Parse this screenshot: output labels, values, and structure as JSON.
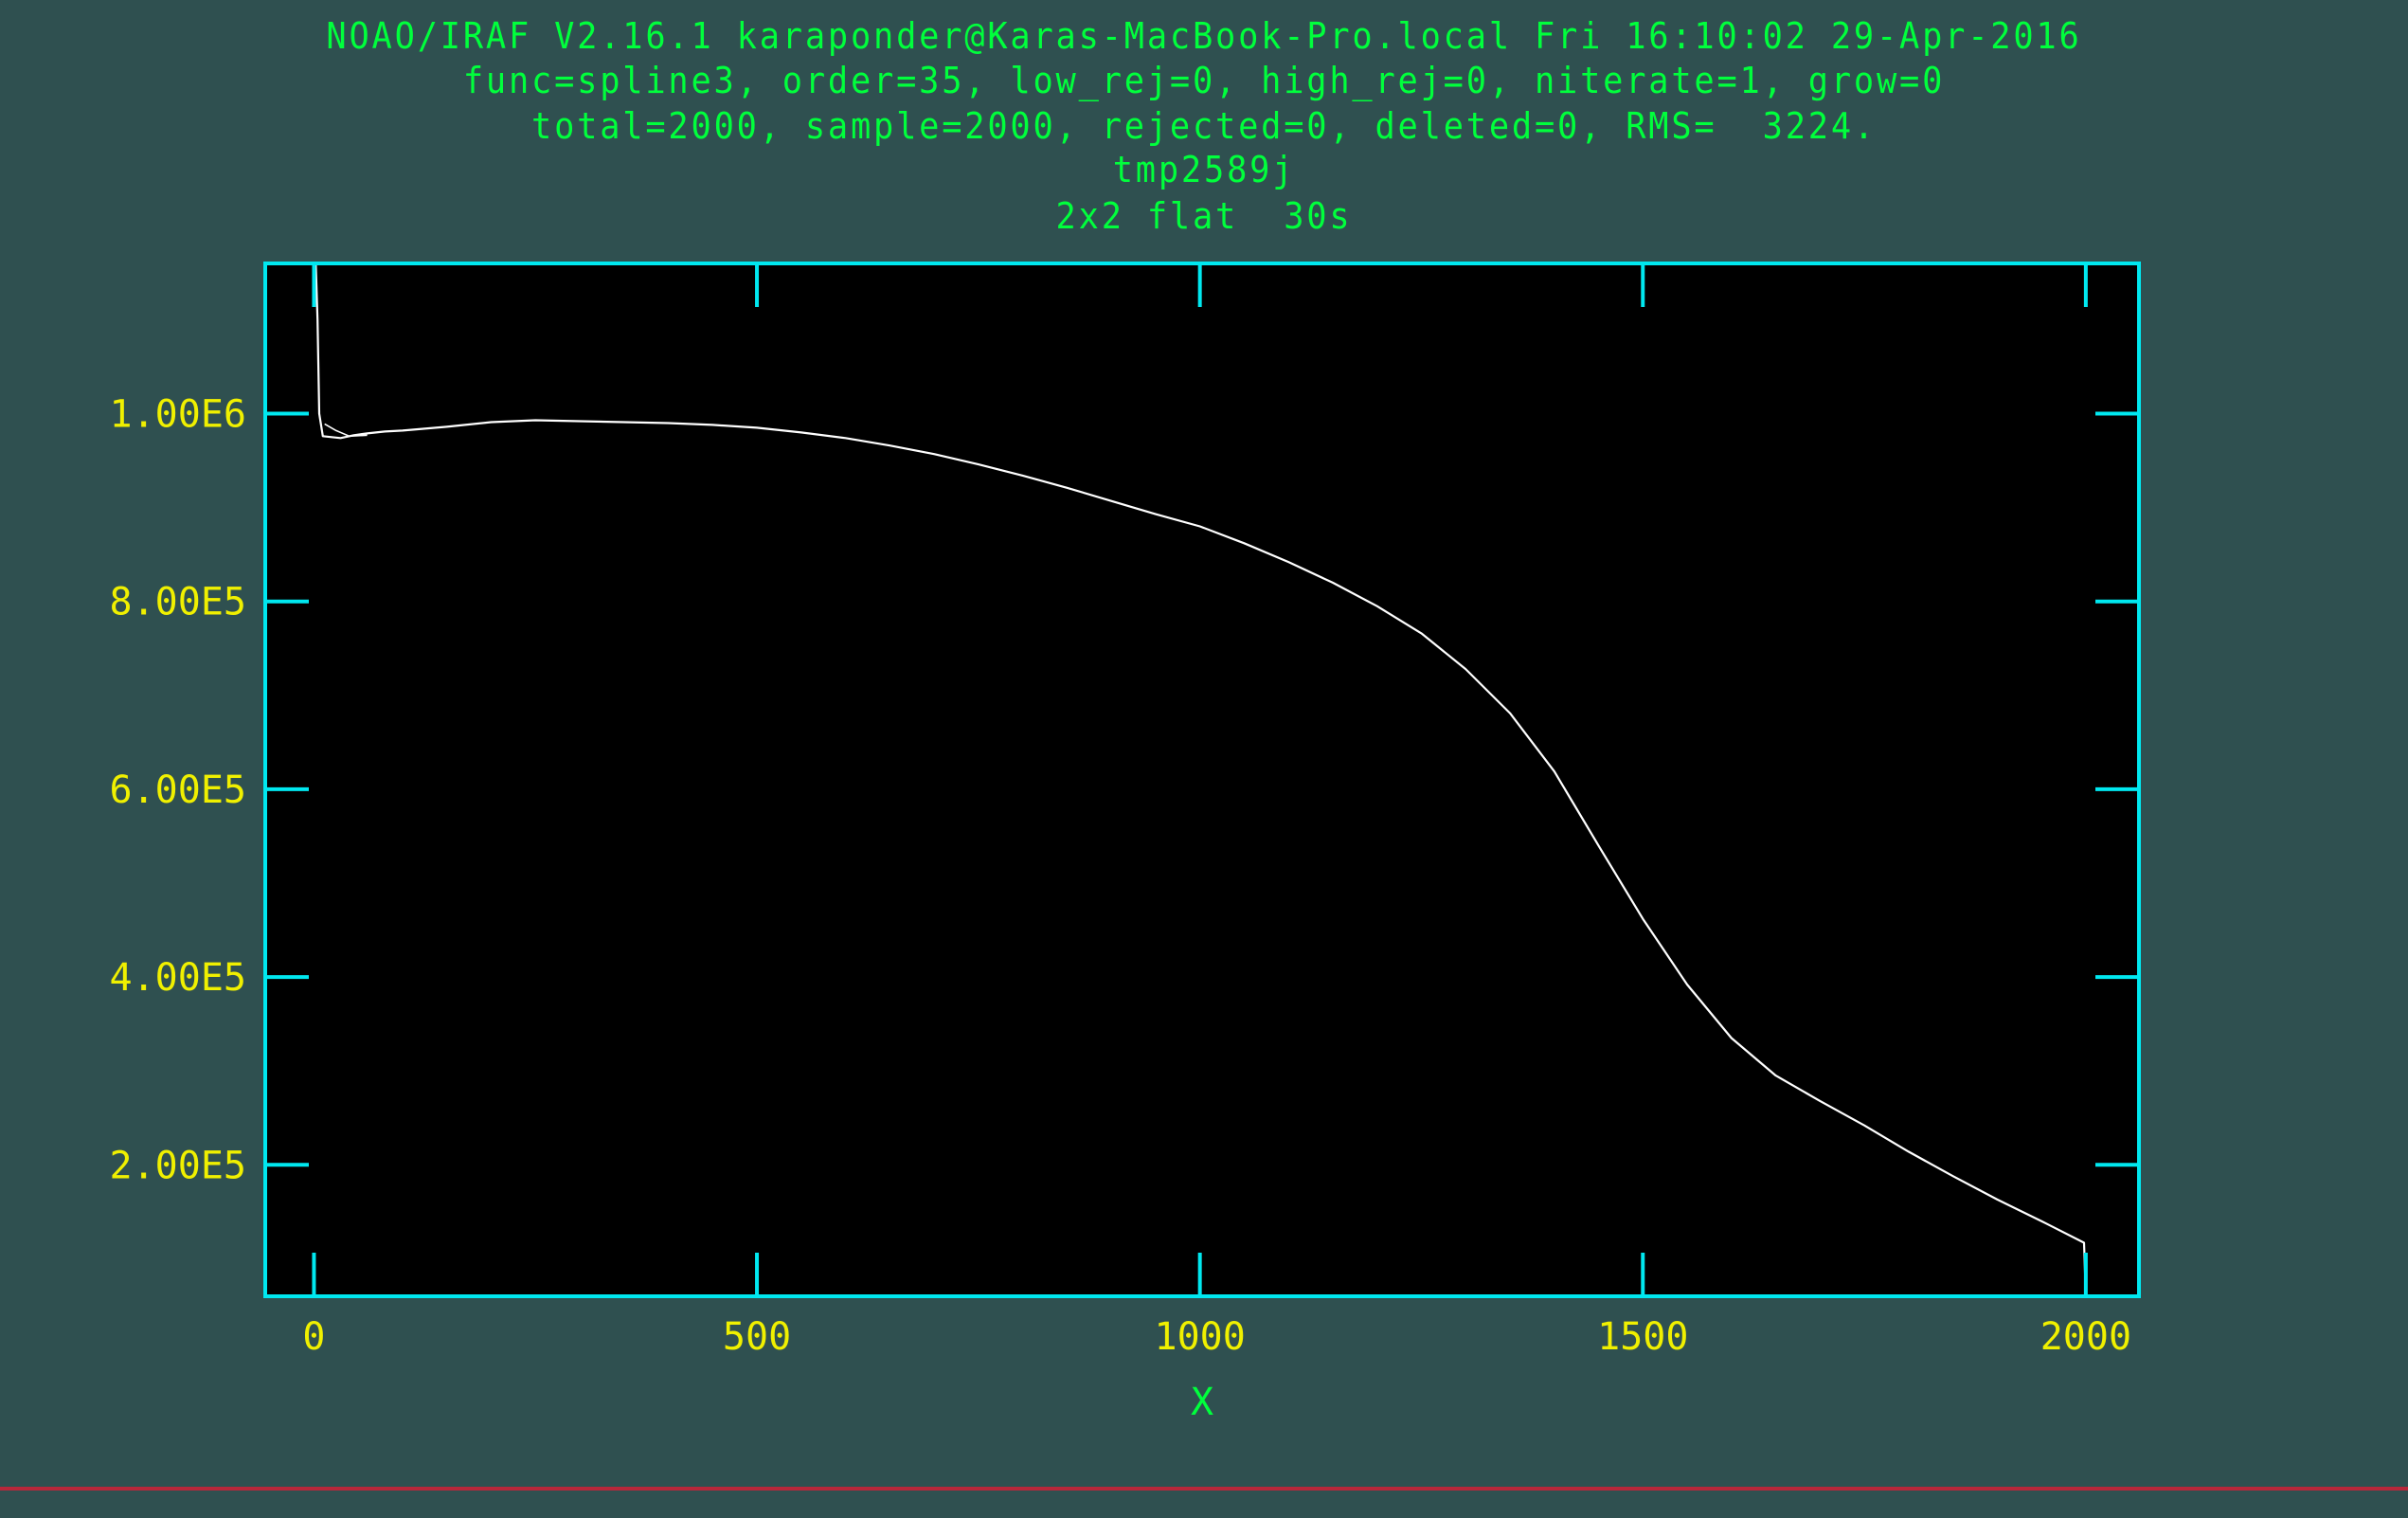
{
  "header": {
    "line1": "NOAO/IRAF V2.16.1 karaponder@Karas-MacBook-Pro.local Fri 16:10:02 29-Apr-2016",
    "line2": "func=spline3, order=35, low_rej=0, high_rej=0, niterate=1, grow=0",
    "line3": "total=2000, sample=2000, rejected=0, deleted=0, RMS=  3224.",
    "line4": "tmp2589j",
    "line5": "2x2 flat  30s"
  },
  "colors": {
    "background": "#2f5050",
    "plot_background": "#000000",
    "axis_frame": "#00e8f0",
    "tick_labels": "#f0f000",
    "header_text": "#00ff3c",
    "data_line": "#ffffff",
    "bottom_rule": "#b8273a"
  },
  "chart_data": {
    "type": "line",
    "xlabel": "X",
    "ylabel": "",
    "xlim": [
      -55,
      2060
    ],
    "ylim": [
      60000,
      1160000
    ],
    "x_ticks": [
      0,
      500,
      1000,
      1500,
      2000
    ],
    "x_tick_labels": [
      "0",
      "500",
      "1000",
      "1500",
      "2000"
    ],
    "y_ticks": [
      200000,
      400000,
      600000,
      800000,
      1000000
    ],
    "y_tick_labels": [
      "2.00E5",
      "4.00E5",
      "6.00E5",
      "8.00E5",
      "1.00E6"
    ],
    "grid": false,
    "series": [
      {
        "x": [
          2,
          4,
          6,
          10,
          20,
          30,
          45,
          60,
          80,
          100,
          150,
          200,
          250,
          300,
          350,
          400,
          450,
          500,
          550,
          600,
          650,
          700,
          750,
          800,
          850,
          900,
          950,
          1000,
          1050,
          1100,
          1150,
          1200,
          1250,
          1300,
          1350,
          1400,
          1450,
          1500,
          1550,
          1600,
          1650,
          1700,
          1750,
          1800,
          1850,
          1900,
          1950,
          1998,
          2000
        ],
        "y": [
          1160000,
          1100000,
          1000000,
          976000,
          975000,
          974000,
          977000,
          979000,
          981000,
          982000,
          986000,
          991000,
          993000,
          992000,
          991000,
          990000,
          988000,
          985000,
          980000,
          974000,
          966000,
          957000,
          946000,
          934000,
          921000,
          907000,
          893000,
          880000,
          862000,
          842000,
          820000,
          795000,
          766000,
          728000,
          681000,
          619000,
          540000,
          462000,
          392000,
          335000,
          295000,
          268000,
          242000,
          214000,
          188000,
          163000,
          140000,
          117000,
          60000
        ]
      },
      {
        "x": [
          12,
          25,
          40,
          60
        ],
        "y": [
          989000,
          982000,
          976000,
          977000
        ]
      }
    ]
  }
}
